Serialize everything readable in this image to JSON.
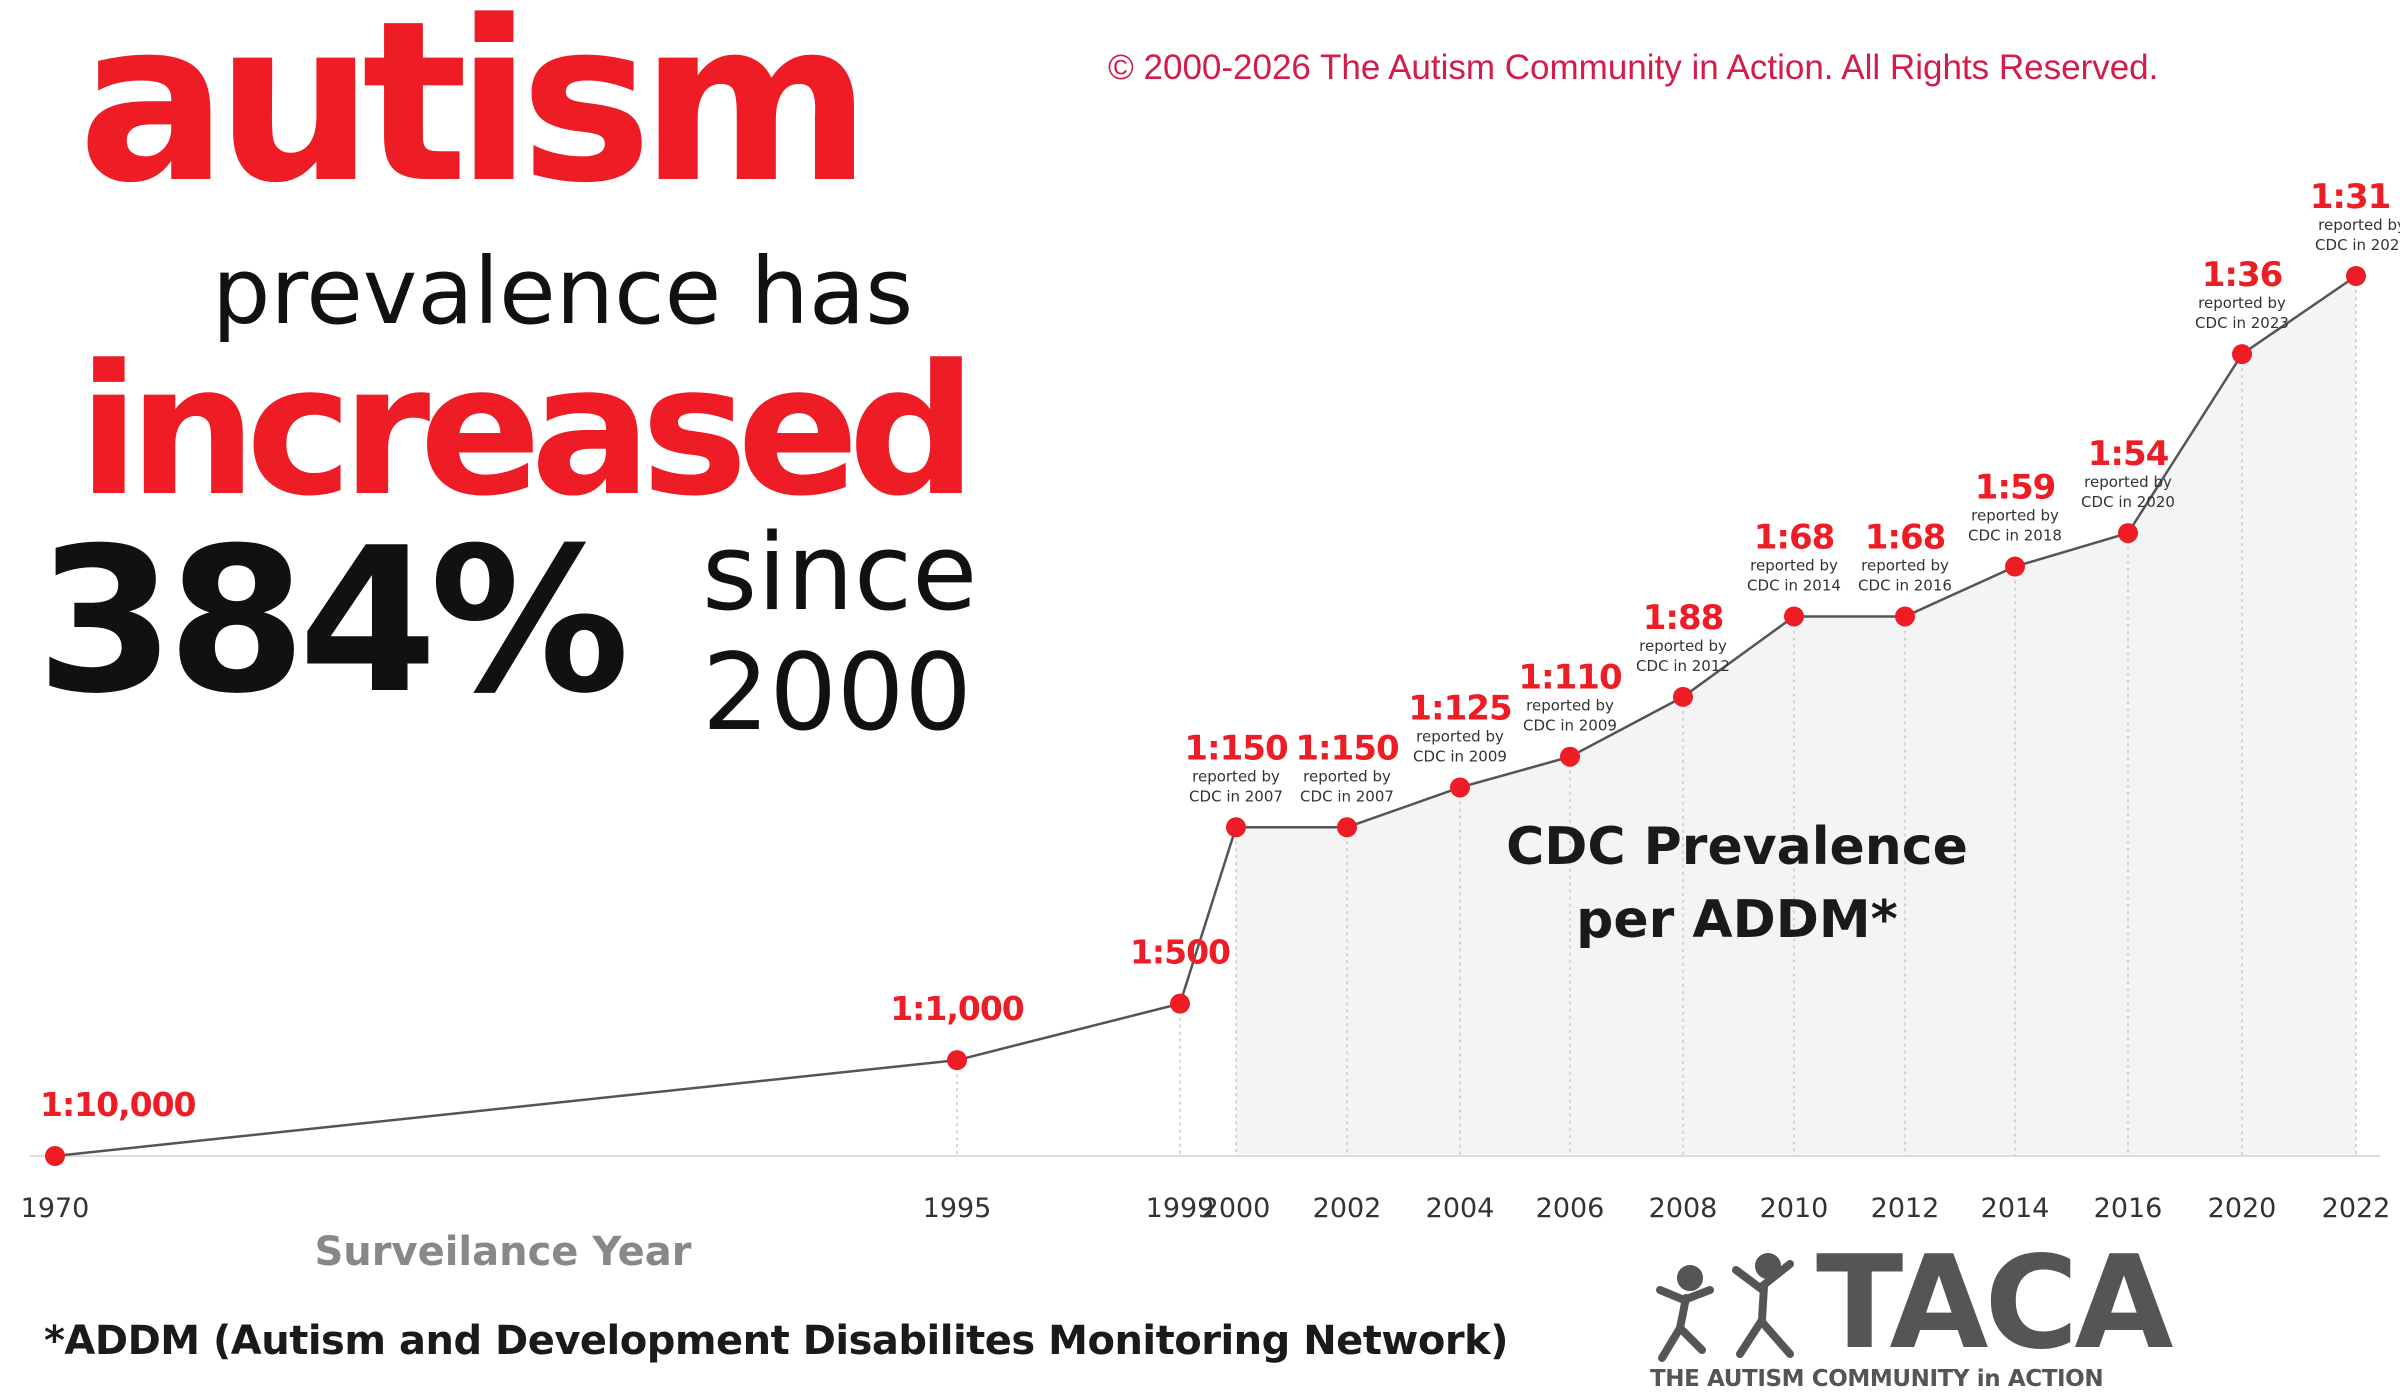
{
  "headline": {
    "line1": "autism",
    "line2": "prevalence has",
    "line3": "increased",
    "percent": "384%",
    "since": "since",
    "year": "2000"
  },
  "copyright": "© 2000-2026 The Autism Community in Action. All Rights Reserved.",
  "footnote": "*ADDM (Autism and Development Disabilites Monitoring Network)",
  "logo": {
    "word": "TACA",
    "tagline": "THE AUTISM COMMUNITY in ACTION"
  },
  "colors": {
    "accent": "#ee1c25",
    "text": "#111111",
    "axis_label": "#888888",
    "line": "#555555",
    "area": "#f4f4f4",
    "copyright": "#d31c4a",
    "logo": "#555555"
  },
  "chart_data": {
    "type": "line",
    "xlabel": "Surveilance Year",
    "ylabel": "",
    "area_label": [
      "CDC Prevalence",
      "per ADDM*"
    ],
    "x": [
      "1970",
      "1995",
      "1999",
      "2000",
      "2002",
      "2004",
      "2006",
      "2008",
      "2010",
      "2012",
      "2014",
      "2016",
      "2020",
      "2022"
    ],
    "labels": [
      "1:10,000",
      "1:1,000",
      "1:500",
      "1:150",
      "1:150",
      "1:125",
      "1:110",
      "1:88",
      "1:68",
      "1:68",
      "1:59",
      "1:54",
      "1:36",
      "1:31"
    ],
    "values": [
      1,
      10,
      20,
      66.7,
      66.7,
      80,
      90.9,
      113.6,
      147.1,
      147.1,
      169.5,
      185.2,
      277.8,
      322.6
    ],
    "notes": [
      "",
      "",
      "",
      "reported by|CDC in 2007",
      "reported by|CDC in 2007",
      "reported by|CDC in 2009",
      "reported by|CDC in 2009",
      "reported by|CDC in 2012",
      "reported by|CDC in 2014",
      "reported by|CDC in 2016",
      "reported by|CDC in 2018",
      "reported by|CDC in 2020",
      "reported by|CDC in 2023",
      "reported by|CDC in 2025"
    ],
    "shaded_from": "2000",
    "grid": false,
    "legend": "none"
  }
}
